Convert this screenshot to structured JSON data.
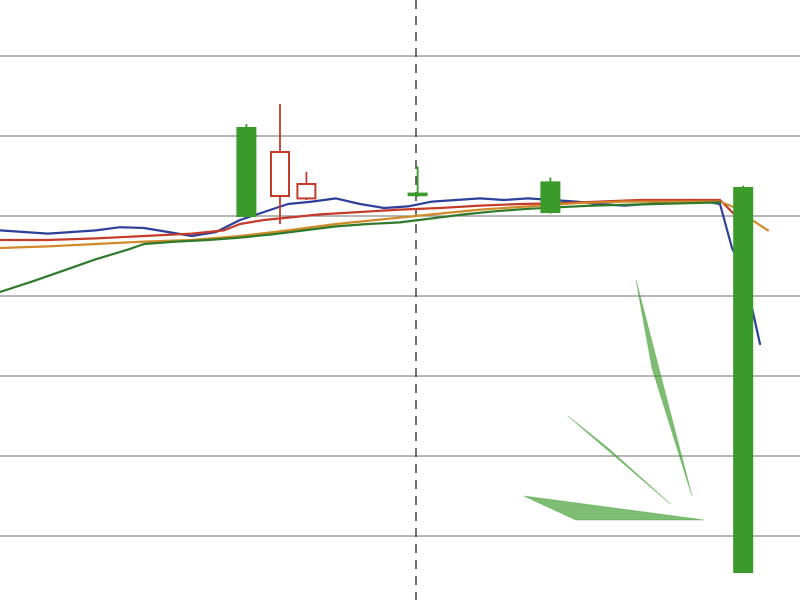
{
  "chart_data": {
    "type": "candlestick",
    "title": "",
    "xlabel": "",
    "ylabel": "",
    "xlim": [
      0,
      100
    ],
    "ylim": [
      0,
      7.5
    ],
    "grid": true,
    "y_gridlines": [
      0.8,
      1.8,
      2.8,
      3.8,
      4.8,
      5.8,
      6.8
    ],
    "session_divider_x": 52,
    "legend": "none",
    "colors": {
      "up": "#3a9a2a",
      "down": "#c43b2a",
      "price_line": "#2e3f9a",
      "ma_fast": "#c43b2a",
      "ma_mid": "#d08a2a",
      "ma_slow": "#2f7a2a"
    },
    "series": [
      {
        "key": "price_line",
        "x": [
          0,
          3,
          6,
          9,
          12,
          15,
          18,
          21,
          24,
          27,
          30,
          33,
          36,
          39,
          42,
          45,
          48,
          51,
          54,
          57,
          60,
          63,
          66,
          69,
          72,
          75,
          78,
          81,
          84,
          87,
          90,
          91.5,
          93,
          95
        ],
        "y": [
          4.62,
          4.6,
          4.58,
          4.6,
          4.62,
          4.66,
          4.65,
          4.6,
          4.55,
          4.6,
          4.75,
          4.85,
          4.95,
          4.98,
          5.02,
          4.95,
          4.9,
          4.92,
          4.98,
          5.0,
          5.02,
          5.0,
          5.02,
          5.0,
          4.98,
          4.95,
          4.93,
          4.95,
          4.98,
          5.0,
          4.95,
          4.4,
          4.1,
          3.2
        ]
      },
      {
        "key": "ma_fast",
        "x": [
          0,
          6,
          12,
          18,
          24,
          28,
          30,
          33,
          36,
          40,
          45,
          50,
          55,
          60,
          65,
          70,
          75,
          80,
          85,
          90,
          92,
          94
        ],
        "y": [
          4.5,
          4.5,
          4.52,
          4.55,
          4.58,
          4.62,
          4.7,
          4.75,
          4.78,
          4.82,
          4.85,
          4.88,
          4.9,
          4.93,
          4.95,
          4.96,
          4.98,
          5.0,
          5.0,
          5.0,
          4.8,
          4.6
        ]
      },
      {
        "key": "ma_mid",
        "x": [
          0,
          6,
          12,
          18,
          24,
          30,
          36,
          42,
          48,
          54,
          60,
          66,
          72,
          78,
          84,
          90,
          92,
          94,
          96
        ],
        "y": [
          4.4,
          4.42,
          4.45,
          4.48,
          4.5,
          4.55,
          4.62,
          4.7,
          4.76,
          4.82,
          4.88,
          4.92,
          4.96,
          4.98,
          4.98,
          4.98,
          4.9,
          4.75,
          4.62
        ]
      },
      {
        "key": "ma_slow",
        "x": [
          0,
          4,
          8,
          12,
          16,
          18,
          22,
          26,
          30,
          34,
          38,
          42,
          46,
          50,
          54,
          58,
          62,
          66,
          70,
          74,
          78,
          82,
          86,
          90
        ],
        "y": [
          3.85,
          3.98,
          4.12,
          4.26,
          4.38,
          4.45,
          4.48,
          4.5,
          4.53,
          4.57,
          4.62,
          4.67,
          4.7,
          4.72,
          4.77,
          4.82,
          4.86,
          4.89,
          4.91,
          4.93,
          4.94,
          4.95,
          4.96,
          4.97
        ]
      }
    ],
    "candles": [
      {
        "x": 30.8,
        "open": 4.8,
        "high": 5.95,
        "low": 4.8,
        "close": 5.9
      },
      {
        "x": 35.0,
        "open": 5.6,
        "high": 6.2,
        "low": 4.7,
        "close": 5.05
      },
      {
        "x": 38.3,
        "open": 5.2,
        "high": 5.35,
        "low": 5.0,
        "close": 5.02
      },
      {
        "x": 52.2,
        "open": 5.06,
        "high": 5.42,
        "low": 5.04,
        "close": 5.08
      },
      {
        "x": 68.8,
        "open": 4.85,
        "high": 5.28,
        "low": 4.83,
        "close": 5.22
      },
      {
        "x": 92.9,
        "open": 0.35,
        "high": 5.18,
        "low": 0.35,
        "close": 5.15
      }
    ],
    "decorations": [
      {
        "kind": "triangle",
        "points": [
          [
            79.5,
            4.0
          ],
          [
            81.5,
            2.9
          ],
          [
            86.5,
            1.3
          ]
        ]
      },
      {
        "kind": "triangle",
        "points": [
          [
            71.0,
            2.3
          ],
          [
            76.0,
            1.9
          ],
          [
            83.8,
            1.2
          ]
        ]
      },
      {
        "kind": "triangle",
        "points": [
          [
            65.5,
            1.3
          ],
          [
            72.0,
            1.0
          ],
          [
            88.0,
            1.0
          ]
        ]
      }
    ]
  }
}
